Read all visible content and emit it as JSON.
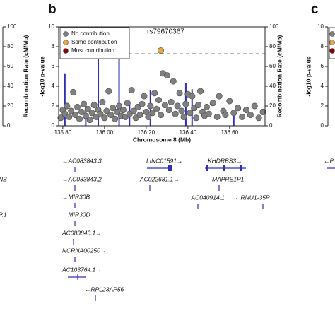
{
  "panel_labels": [
    "b",
    "c"
  ],
  "chart_data": {
    "type": "scatter",
    "annotation": "rs79670367",
    "xlabel": "Chromosome 8 (Mb)",
    "ylabel": "-log10 p-value",
    "y2label": "Recombination Rate (cM/Mb)",
    "xlim": [
      135.78,
      136.77
    ],
    "xticks": [
      {
        "value": 135.8,
        "label": "135.80"
      },
      {
        "value": 136.0,
        "label": "136.00"
      },
      {
        "value": 136.2,
        "label": "136.20"
      },
      {
        "value": 136.4,
        "label": "136.40"
      },
      {
        "value": 136.6,
        "label": "136.60"
      }
    ],
    "ylim": [
      0,
      10
    ],
    "yticks": [
      0,
      2,
      4,
      6,
      8,
      10
    ],
    "y2lim": [
      0,
      100
    ],
    "y2ticks": [
      0,
      20,
      40,
      60,
      80,
      100
    ],
    "threshold": 7.3,
    "legend": "upper left",
    "series": [
      {
        "name": "No contribution",
        "color": "#808080",
        "x": [
          135.79,
          135.8,
          135.81,
          135.82,
          135.83,
          135.84,
          135.85,
          135.86,
          135.87,
          135.88,
          135.89,
          135.9,
          135.91,
          135.92,
          135.93,
          135.94,
          135.95,
          135.96,
          135.97,
          135.98,
          135.99,
          136.0,
          136.01,
          136.02,
          136.03,
          136.04,
          136.05,
          136.06,
          136.07,
          136.08,
          136.09,
          136.1,
          136.11,
          136.12,
          136.13,
          136.14,
          136.15,
          136.16,
          136.17,
          136.18,
          136.19,
          136.2,
          136.21,
          136.22,
          136.23,
          136.24,
          136.25,
          136.26,
          136.27,
          136.28,
          136.29,
          136.3,
          136.31,
          136.32,
          136.33,
          136.34,
          136.35,
          136.36,
          136.37,
          136.38,
          136.39,
          136.4,
          136.41,
          136.42,
          136.43,
          136.44,
          136.45,
          136.46,
          136.47,
          136.48,
          136.49,
          136.5,
          136.52,
          136.54,
          136.55,
          136.57,
          136.58,
          136.6,
          136.62,
          136.64,
          136.66,
          136.68,
          136.7,
          136.72,
          136.74,
          136.76
        ],
        "values": [
          0.8,
          1.6,
          1.2,
          2.0,
          0.9,
          1.5,
          3.4,
          1.1,
          1.9,
          0.7,
          1.4,
          2.2,
          1.0,
          1.7,
          0.6,
          1.3,
          2.1,
          0.9,
          1.6,
          1.2,
          2.4,
          0.8,
          1.5,
          3.5,
          1.1,
          1.8,
          0.7,
          1.4,
          2.0,
          1.0,
          1.6,
          0.9,
          2.3,
          1.2,
          3.6,
          1.5,
          0.8,
          1.9,
          1.1,
          2.2,
          3.0,
          1.4,
          0.9,
          2.0,
          1.3,
          3.3,
          1.7,
          2.6,
          1.1,
          5.3,
          2.1,
          5.1,
          1.6,
          2.4,
          4.5,
          1.2,
          2.0,
          3.3,
          1.5,
          0.9,
          2.2,
          3.2,
          1.3,
          3.0,
          1.8,
          0.8,
          2.1,
          3.5,
          1.4,
          1.0,
          1.9,
          1.2,
          2.3,
          0.9,
          3.0,
          1.5,
          1.1,
          2.5,
          1.3,
          1.8,
          0.9,
          1.6,
          1.1,
          2.0,
          0.8,
          1.4
        ]
      },
      {
        "name": "Some contribution",
        "color": "#e5a848",
        "x": [
          136.27
        ],
        "values": [
          7.6
        ]
      },
      {
        "name": "Most contribution",
        "color": "#8b0000",
        "x": [],
        "values": []
      }
    ],
    "recombination": {
      "axis": "y2",
      "color": "#3030b0",
      "x": [
        135.81,
        135.91,
        135.97,
        136.07,
        136.12,
        136.22,
        136.39,
        136.42,
        136.62
      ],
      "values": [
        53,
        24,
        84,
        70,
        21,
        36,
        43,
        37,
        16
      ]
    }
  },
  "side_left": {
    "y2ticks": [
      0,
      20,
      40,
      60,
      80,
      100
    ],
    "y2label": "Recombination Rate (cM/Mb)"
  },
  "side_right": {
    "yticks": [
      0,
      2,
      4,
      6,
      8,
      10
    ],
    "ylabel": "-log10 p-value"
  },
  "genes": [
    "←AC083843.3",
    "←AC083843.2",
    "←MIR30B",
    "←MIR30D",
    "AC083843.1→",
    "NCRNA00250→",
    "AC103764.1→",
    "←RPL23AP56",
    "LINC01591→",
    "AC022681.1→",
    "KHDRBS3→",
    "MAPRE1P1",
    "←AC040914.1",
    "←RNU1-35P",
    "NB",
    "P.1",
    "←P"
  ]
}
